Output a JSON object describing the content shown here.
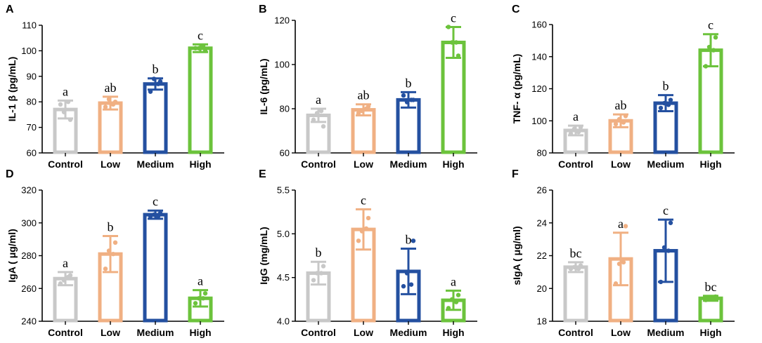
{
  "colors": {
    "Control": "#c8c8c8",
    "Low": "#f0b083",
    "Medium": "#2450a0",
    "High": "#6cc33c"
  },
  "chart_data": [
    {
      "panel": "A",
      "type": "bar",
      "ylabel": "IL-1 β (pg/mL)",
      "ylim": [
        60,
        110
      ],
      "yticks": [
        60,
        70,
        80,
        90,
        100,
        110
      ],
      "categories": [
        "Control",
        "Low",
        "Medium",
        "High"
      ],
      "values": [
        77,
        79.5,
        87,
        101
      ],
      "errors": [
        3.5,
        2.5,
        2.2,
        1.5
      ],
      "points": [
        [
          79,
          73,
          76,
          80
        ],
        [
          78,
          80,
          81,
          79
        ],
        [
          84,
          88,
          89,
          87
        ],
        [
          101,
          100,
          101,
          102
        ]
      ],
      "letters": [
        "a",
        "ab",
        "b",
        "c"
      ]
    },
    {
      "panel": "B",
      "type": "bar",
      "ylabel": "IL-6 (pg/mL)",
      "ylim": [
        60,
        120
      ],
      "yticks": [
        60,
        80,
        100,
        120
      ],
      "categories": [
        "Control",
        "Low",
        "Medium",
        "High"
      ],
      "values": [
        77,
        79.5,
        84,
        110
      ],
      "errors": [
        3,
        2.5,
        3.5,
        7
      ],
      "points": [
        [
          75,
          72,
          78,
          79
        ],
        [
          78,
          81,
          79,
          80
        ],
        [
          86,
          84,
          83,
          84
        ],
        [
          117,
          104,
          110,
          110
        ]
      ],
      "letters": [
        "a",
        "ab",
        "b",
        "c"
      ]
    },
    {
      "panel": "C",
      "type": "bar",
      "ylabel": "TNF- α (pg/mL)",
      "ylim": [
        80,
        160
      ],
      "yticks": [
        80,
        100,
        120,
        140,
        160
      ],
      "categories": [
        "Control",
        "Low",
        "Medium",
        "High"
      ],
      "values": [
        94,
        100,
        111,
        144
      ],
      "errors": [
        3,
        4,
        5,
        10
      ],
      "points": [
        [
          92,
          96,
          95,
          93
        ],
        [
          98,
          103,
          101,
          99
        ],
        [
          108,
          113,
          111,
          110
        ],
        [
          134,
          152,
          146,
          144
        ]
      ],
      "letters": [
        "a",
        "ab",
        "b",
        "c"
      ]
    },
    {
      "panel": "D",
      "type": "bar",
      "ylabel": "IgA ( μg/ml)",
      "ylim": [
        240,
        320
      ],
      "yticks": [
        240,
        260,
        280,
        300,
        320
      ],
      "categories": [
        "Control",
        "Low",
        "Medium",
        "High"
      ],
      "values": [
        266,
        281,
        305,
        254
      ],
      "errors": [
        4,
        11,
        2.5,
        5
      ],
      "points": [
        [
          263,
          268,
          265,
          267
        ],
        [
          272,
          288,
          283,
          281
        ],
        [
          304,
          306,
          305,
          304
        ],
        [
          251,
          257,
          254,
          254
        ]
      ],
      "letters": [
        "a",
        "b",
        "c",
        "a"
      ]
    },
    {
      "panel": "E",
      "type": "bar",
      "ylabel": "IgG (mg/mL)",
      "ylim": [
        4.0,
        5.5
      ],
      "yticks": [
        4.0,
        4.5,
        5.0,
        5.5
      ],
      "categories": [
        "Control",
        "Low",
        "Medium",
        "High"
      ],
      "values": [
        4.55,
        5.05,
        4.57,
        4.24
      ],
      "errors": [
        0.13,
        0.23,
        0.26,
        0.11
      ],
      "points": [
        [
          4.47,
          4.63,
          4.55,
          4.55
        ],
        [
          4.92,
          5.18,
          5.03,
          5.06
        ],
        [
          4.4,
          4.92,
          4.55,
          4.42
        ],
        [
          4.15,
          4.3,
          4.25,
          4.22
        ]
      ],
      "letters": [
        "b",
        "c",
        "b",
        "a"
      ]
    },
    {
      "panel": "F",
      "type": "bar",
      "ylabel": "sIgA ( μg/ml)",
      "ylim": [
        18,
        26
      ],
      "yticks": [
        18,
        20,
        22,
        24,
        26
      ],
      "categories": [
        "Control",
        "Low",
        "Medium",
        "High"
      ],
      "values": [
        21.3,
        21.8,
        22.3,
        19.4
      ],
      "errors": [
        0.3,
        1.6,
        1.9,
        0.15
      ],
      "points": [
        [
          21.2,
          21.4,
          21.3,
          21.2
        ],
        [
          20.3,
          23.8,
          21.5,
          21.6
        ],
        [
          20.4,
          24.0,
          22.5,
          22.3
        ],
        [
          19.3,
          19.5,
          19.4,
          19.4
        ]
      ],
      "letters": [
        "bc",
        "a",
        "c",
        "bc"
      ]
    }
  ]
}
